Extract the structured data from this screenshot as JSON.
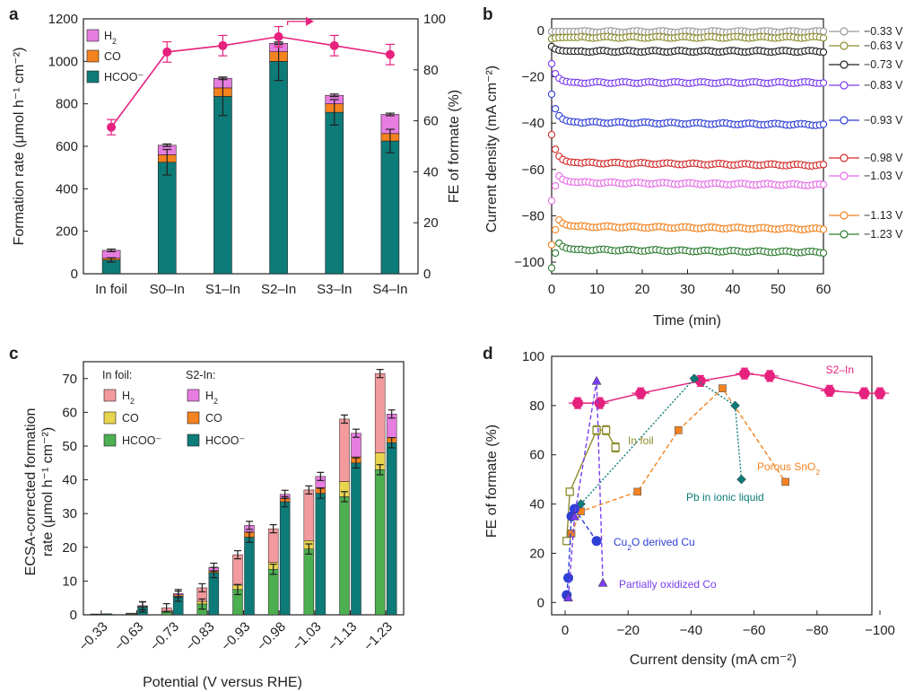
{
  "figure": {
    "panel_labels": [
      "a",
      "b",
      "c",
      "d"
    ]
  },
  "chart_data": [
    {
      "panel": "a",
      "type": "bar",
      "categories": [
        "In foil",
        "S0–In",
        "S1–In",
        "S2–In",
        "S3–In",
        "S4–In"
      ],
      "ylabel": "Formation rate (μmol h⁻¹ cm⁻²)",
      "y2label": "FE of formate (%)",
      "ylim": [
        0,
        1200
      ],
      "yticks": [
        "0",
        "200",
        "400",
        "600",
        "800",
        "1000",
        "1200"
      ],
      "y2lim": [
        0,
        100
      ],
      "y2ticks": [
        "0",
        "20",
        "40",
        "60",
        "80",
        "100"
      ],
      "stack_series": [
        {
          "name": "HCOO⁻",
          "color": "#0d7b78",
          "values": [
            65,
            525,
            835,
            1000,
            760,
            625
          ],
          "errors": [
            10,
            60,
            90,
            90,
            60,
            55
          ]
        },
        {
          "name": "CO",
          "color": "#f4821f",
          "values": [
            8,
            35,
            40,
            45,
            40,
            35
          ]
        },
        {
          "name": "H₂",
          "color": "#e77de0",
          "values": [
            37,
            45,
            45,
            40,
            40,
            90
          ]
        }
      ],
      "legend_order": [
        "H₂",
        "CO",
        "HCOO⁻"
      ],
      "line_series": {
        "name": "FE of formate",
        "axis": "right",
        "color": "#e6217e",
        "values": [
          57.5,
          87,
          89.5,
          93,
          89.5,
          86
        ],
        "errors": [
          3,
          4,
          4,
          4,
          4,
          4
        ]
      }
    },
    {
      "panel": "b",
      "type": "line",
      "xlabel": "Time (min)",
      "ylabel": "Current density (mA cm⁻²)",
      "xlim": [
        0,
        60
      ],
      "xticks": [
        "0",
        "10",
        "20",
        "30",
        "40",
        "50",
        "60"
      ],
      "ylim": [
        -105,
        5
      ],
      "yticks": [
        "0",
        "−20",
        "−40",
        "−60",
        "−80",
        "−100"
      ],
      "series": [
        {
          "name": "−0.33 V",
          "color": "#9a9a9a",
          "level": -0.5
        },
        {
          "name": "−0.63 V",
          "color": "#8c8c2e",
          "level": -3
        },
        {
          "name": "−0.73 V",
          "color": "#231f20",
          "level": -9
        },
        {
          "name": "−0.83 V",
          "color": "#7a3df0",
          "level": -22.5
        },
        {
          "name": "−0.93 V",
          "color": "#2e3fd6",
          "level": -39.5
        },
        {
          "name": "−0.98 V",
          "color": "#d42b2b",
          "level": -57
        },
        {
          "name": "−1.03 V",
          "color": "#e66ce6",
          "level": -65.5
        },
        {
          "name": "−1.13 V",
          "color": "#f4821f",
          "level": -84.5
        },
        {
          "name": "−1.23 V",
          "color": "#2e7d32",
          "level": -94.5
        }
      ]
    },
    {
      "panel": "c",
      "type": "bar",
      "categories": [
        "−0.33",
        "−0.63",
        "−0.73",
        "−0.83",
        "−0.93",
        "−0.98",
        "−1.03",
        "−1.13",
        "−1.23"
      ],
      "xlabel": "Potential (V versus RHE)",
      "ylabel": "ECSA-corrected formation rate (μmol h⁻¹ cm⁻²)",
      "ylim": [
        0,
        75
      ],
      "yticks": [
        "0",
        "10",
        "20",
        "30",
        "40",
        "50",
        "60",
        "70"
      ],
      "legend_groups": [
        "In foil:",
        "S2-In:"
      ],
      "groups": [
        {
          "name": "In foil",
          "stacks": [
            {
              "name": "HCOO⁻",
              "color": "#4caf50",
              "values": [
                0.1,
                0.2,
                0.8,
                3.2,
                7.5,
                13.5,
                19.5,
                35,
                43
              ]
            },
            {
              "name": "CO",
              "color": "#e8d44d",
              "values": [
                0.05,
                0.1,
                0.3,
                0.8,
                1.3,
                2,
                2.5,
                4.5,
                5
              ]
            },
            {
              "name": "H₂",
              "color": "#f29a9d",
              "values": [
                0.1,
                0.2,
                1,
                4,
                9,
                10,
                15,
                18.5,
                23.5
              ]
            }
          ]
        },
        {
          "name": "S2-In",
          "stacks": [
            {
              "name": "HCOO⁻",
              "color": "#0d7b78",
              "values": [
                0.2,
                2.3,
                5.5,
                12.5,
                23,
                33.5,
                36,
                45,
                51
              ]
            },
            {
              "name": "CO",
              "color": "#f4821f",
              "values": [
                0.05,
                0.2,
                0.4,
                0.6,
                1.5,
                0.9,
                1.7,
                1.8,
                1.5
              ]
            },
            {
              "name": "H₂",
              "color": "#e77de0",
              "values": [
                0.05,
                0.2,
                0.4,
                1.0,
                2,
                1.3,
                3.3,
                7,
                7
              ]
            }
          ]
        }
      ]
    },
    {
      "panel": "d",
      "type": "scatter",
      "xlabel": "Current density (mA cm⁻²)",
      "ylabel": "FE of formate (%)",
      "xlim": [
        0,
        -100
      ],
      "xticks": [
        "0",
        "−20",
        "−40",
        "−60",
        "−80",
        "−100"
      ],
      "ylim": [
        -5,
        100
      ],
      "yticks": [
        "0",
        "20",
        "40",
        "60",
        "80",
        "100"
      ],
      "series": [
        {
          "name": "S2–In",
          "color": "#e6217e",
          "marker": "circle",
          "style": "solid",
          "x": [
            -4,
            -11,
            -24,
            -43,
            -57,
            -65,
            -84,
            -95,
            -100
          ],
          "y": [
            81,
            81,
            85,
            90,
            93,
            92,
            86,
            85,
            85
          ]
        },
        {
          "name": "In foil",
          "color": "#8c8c2e",
          "marker": "open-square",
          "style": "solid",
          "x": [
            -0.5,
            -1.5,
            -10,
            -13,
            -16
          ],
          "y": [
            25,
            45,
            70,
            70,
            63
          ]
        },
        {
          "name": "Porous SnO₂",
          "color": "#f4821f",
          "marker": "square",
          "style": "dashed",
          "x": [
            -2,
            -5,
            -23,
            -36,
            -50,
            -70
          ],
          "y": [
            28,
            37,
            45,
            70,
            87,
            49
          ]
        },
        {
          "name": "Pb in ionic liquid",
          "color": "#0d7b78",
          "marker": "diamond",
          "style": "dotted",
          "x": [
            -5,
            -41,
            -54,
            -56
          ],
          "y": [
            40,
            91,
            80,
            50
          ]
        },
        {
          "name": "Cu₂O derived Cu",
          "color": "#2e3fd6",
          "marker": "circle",
          "style": "dashed",
          "x": [
            -0.5,
            -1,
            -2,
            -3,
            -10
          ],
          "y": [
            3,
            10,
            35,
            38,
            25
          ]
        },
        {
          "name": "Partially oxidized Co",
          "color": "#7a3df0",
          "marker": "triangle",
          "style": "dashed",
          "x": [
            -1,
            -3,
            -10,
            -12
          ],
          "y": [
            2,
            35,
            90,
            8
          ]
        }
      ]
    }
  ]
}
